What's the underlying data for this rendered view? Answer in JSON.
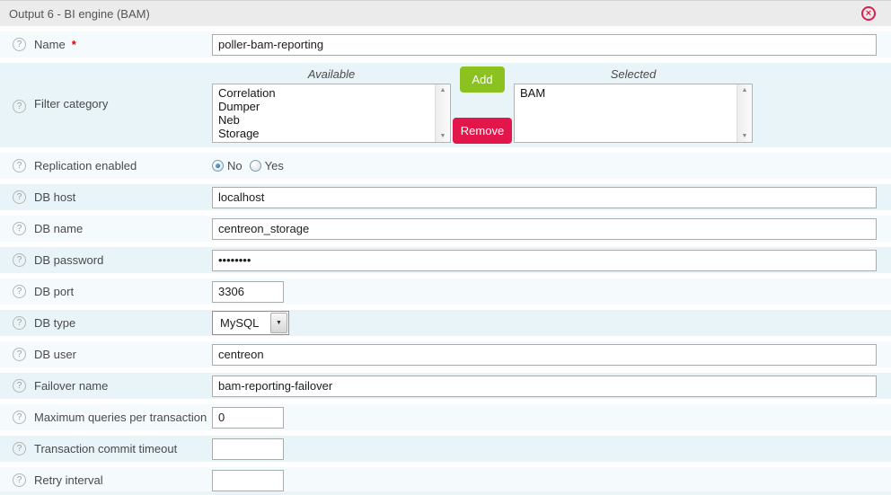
{
  "header": {
    "title": "Output 6 - BI engine (BAM)",
    "close_glyph": "×"
  },
  "icons": {
    "help": "?",
    "scroll_up": "▲",
    "scroll_down": "▼",
    "dropdown": "▼"
  },
  "colors": {
    "add_button": "#8bc220",
    "remove_button": "#e2164a",
    "close_icon": "#d9204e",
    "required_asterisk": "#e00000",
    "row_light": "#f5fafd",
    "row_blue": "#e9f4f9",
    "header_bg": "#ebebeb"
  },
  "rows": {
    "name": {
      "label": "Name",
      "required_marker": "*",
      "value": "poller-bam-reporting"
    },
    "filter_category": {
      "label": "Filter category",
      "available_label": "Available",
      "selected_label": "Selected",
      "available_items": [
        "Correlation",
        "Dumper",
        "Neb",
        "Storage"
      ],
      "selected_items": [
        "BAM"
      ],
      "add_label": "Add",
      "remove_label": "Remove"
    },
    "replication_enabled": {
      "label": "Replication enabled",
      "options": [
        {
          "label": "No",
          "selected": true
        },
        {
          "label": "Yes",
          "selected": false
        }
      ]
    },
    "db_host": {
      "label": "DB host",
      "value": "localhost"
    },
    "db_name": {
      "label": "DB name",
      "value": "centreon_storage"
    },
    "db_password": {
      "label": "DB password",
      "value_masked": "••••••••"
    },
    "db_port": {
      "label": "DB port",
      "value": "3306"
    },
    "db_type": {
      "label": "DB type",
      "value": "MySQL"
    },
    "db_user": {
      "label": "DB user",
      "value": "centreon"
    },
    "failover_name": {
      "label": "Failover name",
      "value": "bam-reporting-failover"
    },
    "max_queries": {
      "label": "Maximum queries per transaction",
      "value": "0"
    },
    "transaction_commit_timeout": {
      "label": "Transaction commit timeout",
      "value": ""
    },
    "retry_interval": {
      "label": "Retry interval",
      "value": ""
    }
  }
}
